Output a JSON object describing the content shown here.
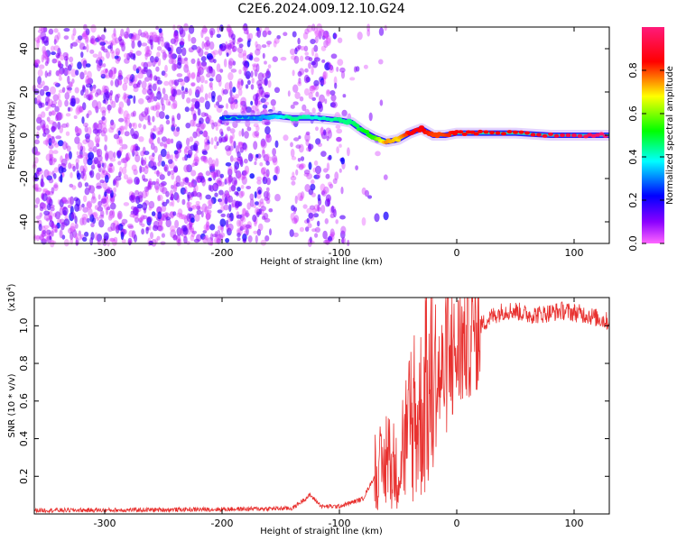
{
  "title": "C2E6.2024.009.12.10.G24",
  "chart_data": [
    {
      "type": "heatmap",
      "xlabel": "Height of straight line (km)",
      "ylabel": "Frequency (Hz)",
      "xlim": [
        -360,
        130
      ],
      "ylim": [
        -50,
        50
      ],
      "xticks": [
        -300,
        -200,
        -100,
        0,
        100
      ],
      "yticks": [
        -40,
        -20,
        0,
        20,
        40
      ],
      "colorbar": {
        "label": "Normalized spectral amplitude",
        "range": [
          0.0,
          1.0
        ],
        "ticks": [
          "0.0",
          "0.2",
          "0.4",
          "0.6",
          "0.8"
        ],
        "colormap": [
          "#ff00ff",
          "#5500ff",
          "#0000ff",
          "#00ffff",
          "#00ff00",
          "#ffff00",
          "#ff0000",
          "#ff0080"
        ]
      },
      "signal_track": [
        {
          "x": -200,
          "freq": 8,
          "amp": 0.25
        },
        {
          "x": -170,
          "freq": 8,
          "amp": 0.3
        },
        {
          "x": -155,
          "freq": 9,
          "amp": 0.35
        },
        {
          "x": -140,
          "freq": 8,
          "amp": 0.45
        },
        {
          "x": -120,
          "freq": 8,
          "amp": 0.4
        },
        {
          "x": -100,
          "freq": 7,
          "amp": 0.45
        },
        {
          "x": -90,
          "freq": 6,
          "amp": 0.45
        },
        {
          "x": -80,
          "freq": 2,
          "amp": 0.5
        },
        {
          "x": -70,
          "freq": -1,
          "amp": 0.55
        },
        {
          "x": -60,
          "freq": -3,
          "amp": 0.75
        },
        {
          "x": -50,
          "freq": -2,
          "amp": 0.7
        },
        {
          "x": -40,
          "freq": 1,
          "amp": 0.85
        },
        {
          "x": -30,
          "freq": 3,
          "amp": 0.85
        },
        {
          "x": -20,
          "freq": 0,
          "amp": 0.8
        },
        {
          "x": -10,
          "freq": 0,
          "amp": 0.8
        },
        {
          "x": 0,
          "freq": 1,
          "amp": 0.85
        },
        {
          "x": 20,
          "freq": 1,
          "amp": 0.85
        },
        {
          "x": 50,
          "freq": 1,
          "amp": 0.85
        },
        {
          "x": 80,
          "freq": 0,
          "amp": 0.9
        },
        {
          "x": 110,
          "freq": 0,
          "amp": 0.95
        },
        {
          "x": 130,
          "freq": 0,
          "amp": 1.0
        }
      ]
    },
    {
      "type": "line",
      "xlabel": "Height of straight line (km)",
      "ylabel": "SNR (10 * v/v)",
      "yscale_note": "(x10",
      "yscale_exp": "4",
      "yscale_close": ")",
      "xlim": [
        -360,
        130
      ],
      "ylim": [
        0,
        1.15
      ],
      "xticks": [
        -300,
        -200,
        -100,
        0,
        100
      ],
      "yticks": [
        "0.2",
        "0.4",
        "0.6",
        "0.8",
        "1.0"
      ],
      "color": "#e8312f",
      "x": [
        -360,
        -300,
        -200,
        -140,
        -125,
        -115,
        -100,
        -80,
        -70,
        -60,
        -50,
        -40,
        -30,
        -20,
        -10,
        0,
        10,
        20,
        30,
        40,
        50,
        60,
        70,
        80,
        90,
        100,
        110,
        120,
        130
      ],
      "values": [
        0.02,
        0.02,
        0.025,
        0.03,
        0.1,
        0.04,
        0.04,
        0.08,
        0.2,
        0.25,
        0.22,
        0.4,
        0.55,
        0.68,
        0.75,
        0.85,
        0.95,
        1.0,
        1.05,
        1.08,
        1.08,
        1.06,
        1.06,
        1.07,
        1.08,
        1.07,
        1.06,
        1.04,
        1.02
      ]
    }
  ]
}
